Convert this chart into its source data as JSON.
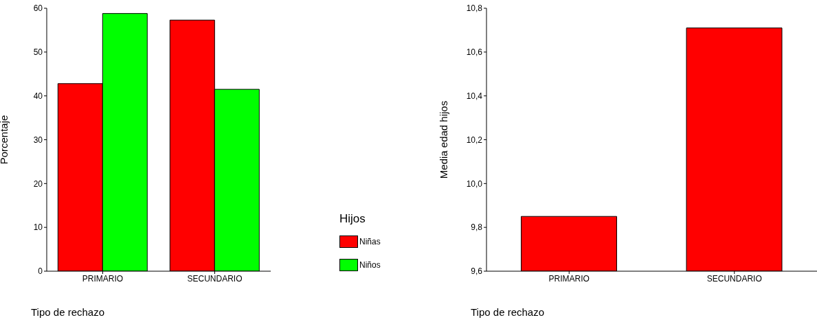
{
  "chart_data": [
    {
      "type": "bar",
      "xlabel": "Tipo de rechazo",
      "ylabel": "Porcentaje",
      "legend_title": "Hijos",
      "legend": "bottom right",
      "categories": [
        "PRIMARIO",
        "SECUNDARIO"
      ],
      "series": [
        {
          "name": "Niñas",
          "color": "#ff0000",
          "values": [
            42.8,
            57.3
          ]
        },
        {
          "name": "Niños",
          "color": "#00ff00",
          "values": [
            58.8,
            41.5
          ]
        }
      ],
      "ylim": [
        0,
        60
      ],
      "yticks": [
        0,
        10,
        20,
        30,
        40,
        50,
        60
      ]
    },
    {
      "type": "bar",
      "xlabel": "Tipo de rechazo",
      "ylabel": "Media edad hijos",
      "categories": [
        "PRIMARIO",
        "SECUNDARIO"
      ],
      "values": [
        9.85,
        10.71
      ],
      "color": "#ff0000",
      "ylim": [
        9.6,
        10.8
      ],
      "yticks": [
        {
          "value": 9.6,
          "label": "9,6"
        },
        {
          "value": 9.8,
          "label": "9,8"
        },
        {
          "value": 10.0,
          "label": "10,0"
        },
        {
          "value": 10.2,
          "label": "10,2"
        },
        {
          "value": 10.4,
          "label": "10,4"
        },
        {
          "value": 10.6,
          "label": "10,6"
        },
        {
          "value": 10.8,
          "label": "10,8"
        }
      ]
    }
  ]
}
